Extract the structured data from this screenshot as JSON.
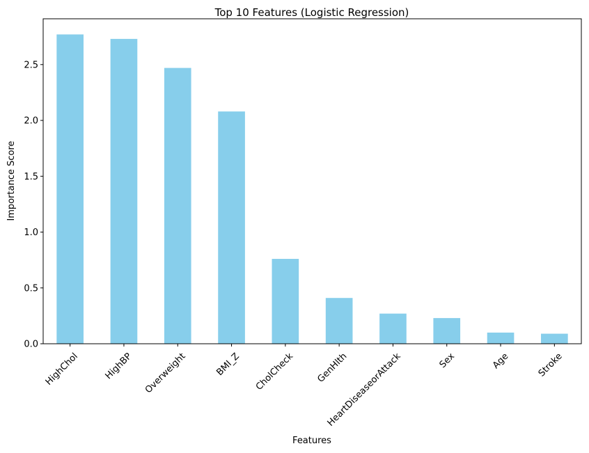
{
  "chart_data": {
    "type": "bar",
    "title": "Top 10 Features (Logistic Regression)",
    "xlabel": "Features",
    "ylabel": "Importance Score",
    "categories": [
      "HighChol",
      "HighBP",
      "Overweight",
      "BMI_Z",
      "CholCheck",
      "GenHlth",
      "HeartDiseaseorAttack",
      "Sex",
      "Age",
      "Stroke"
    ],
    "values": [
      2.77,
      2.73,
      2.47,
      2.08,
      0.76,
      0.41,
      0.27,
      0.23,
      0.1,
      0.09
    ],
    "ylim": [
      0,
      2.91
    ],
    "yticks": [
      "0.0",
      "0.5",
      "1.0",
      "1.5",
      "2.0",
      "2.5"
    ],
    "grid": false,
    "bar_color": "#87CEEB"
  }
}
